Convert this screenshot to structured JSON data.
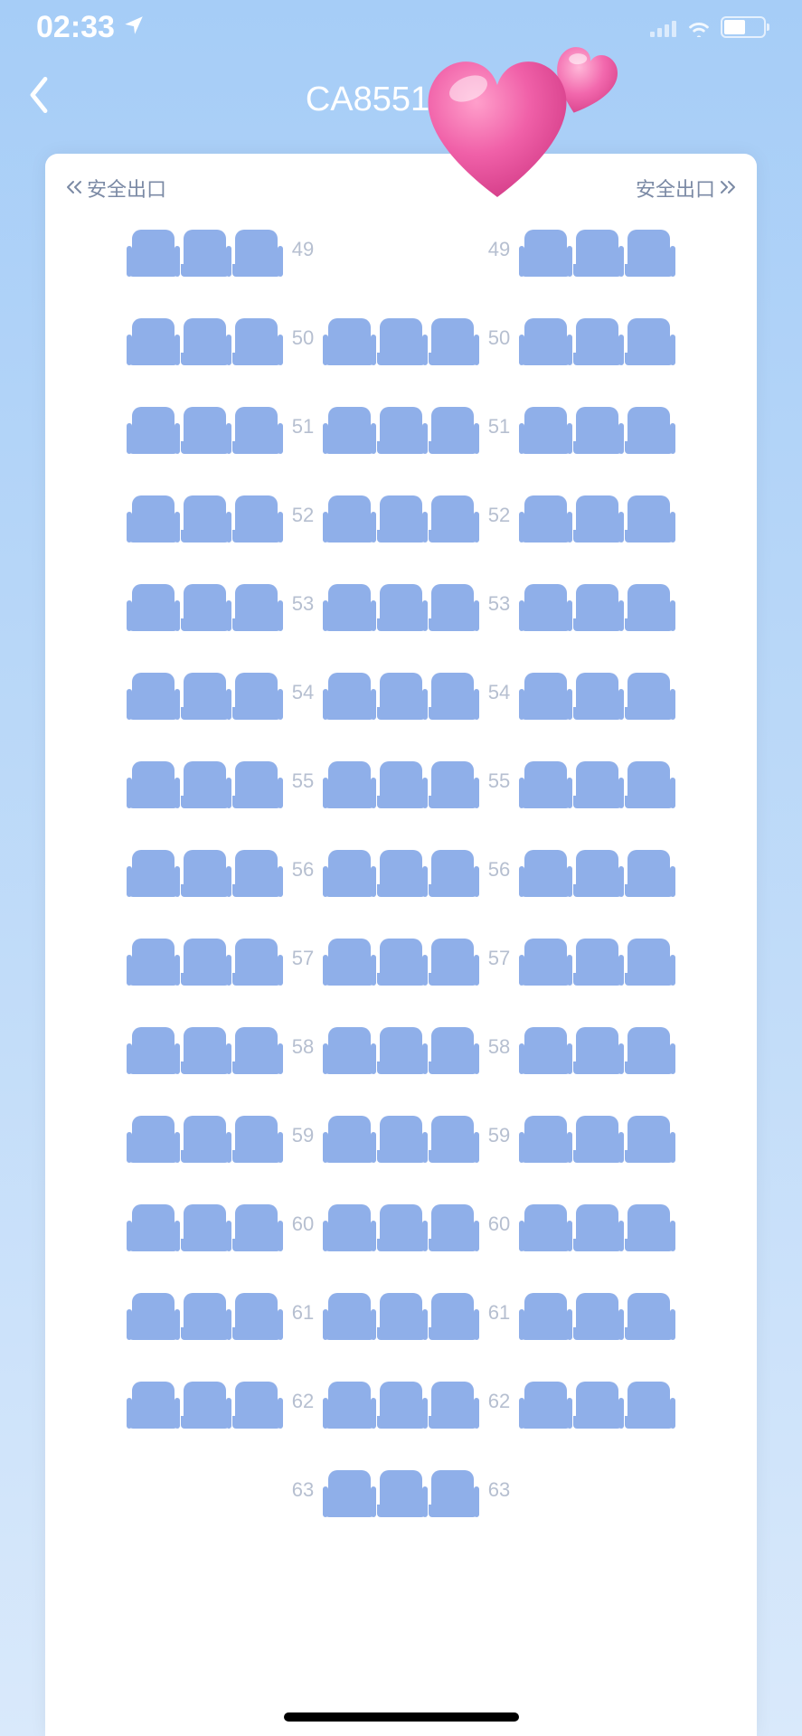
{
  "status": {
    "time": "02:33",
    "location_icon": "location-arrow",
    "signal_bars": 4,
    "wifi_icon": "wifi",
    "battery_pct": 55
  },
  "nav": {
    "title": "CA8551 202",
    "back_icon": "chevron-left"
  },
  "exit": {
    "left_label": "安全出口",
    "right_label": "安全出口",
    "chevrons": "double"
  },
  "colors": {
    "seat_fill": "#8fafe9",
    "seat_fill_alt": "#8fafe9",
    "row_label": "#b6bfd0",
    "exit_text": "#7b8aa5",
    "background_top": "#a6cdf7",
    "background_bottom": "#d9e9fb",
    "cabin_bg": "#ffffff",
    "nav_text": "#ffffff"
  },
  "seat_map": {
    "seats_per_block": 3,
    "rows": [
      {
        "num": "49",
        "left": true,
        "center": false,
        "right": true
      },
      {
        "num": "50",
        "left": true,
        "center": true,
        "right": true
      },
      {
        "num": "51",
        "left": true,
        "center": true,
        "right": true
      },
      {
        "num": "52",
        "left": true,
        "center": true,
        "right": true
      },
      {
        "num": "53",
        "left": true,
        "center": true,
        "right": true
      },
      {
        "num": "54",
        "left": true,
        "center": true,
        "right": true
      },
      {
        "num": "55",
        "left": true,
        "center": true,
        "right": true
      },
      {
        "num": "56",
        "left": true,
        "center": true,
        "right": true
      },
      {
        "num": "57",
        "left": true,
        "center": true,
        "right": true
      },
      {
        "num": "58",
        "left": true,
        "center": true,
        "right": true
      },
      {
        "num": "59",
        "left": true,
        "center": true,
        "right": true
      },
      {
        "num": "60",
        "left": true,
        "center": true,
        "right": true
      },
      {
        "num": "61",
        "left": true,
        "center": true,
        "right": true
      },
      {
        "num": "62",
        "left": true,
        "center": true,
        "right": true
      },
      {
        "num": "63",
        "left": false,
        "center": true,
        "right": false
      }
    ]
  },
  "overlay": {
    "hearts_color": "#f05aa6",
    "hearts_highlight": "#ff9fcb"
  }
}
